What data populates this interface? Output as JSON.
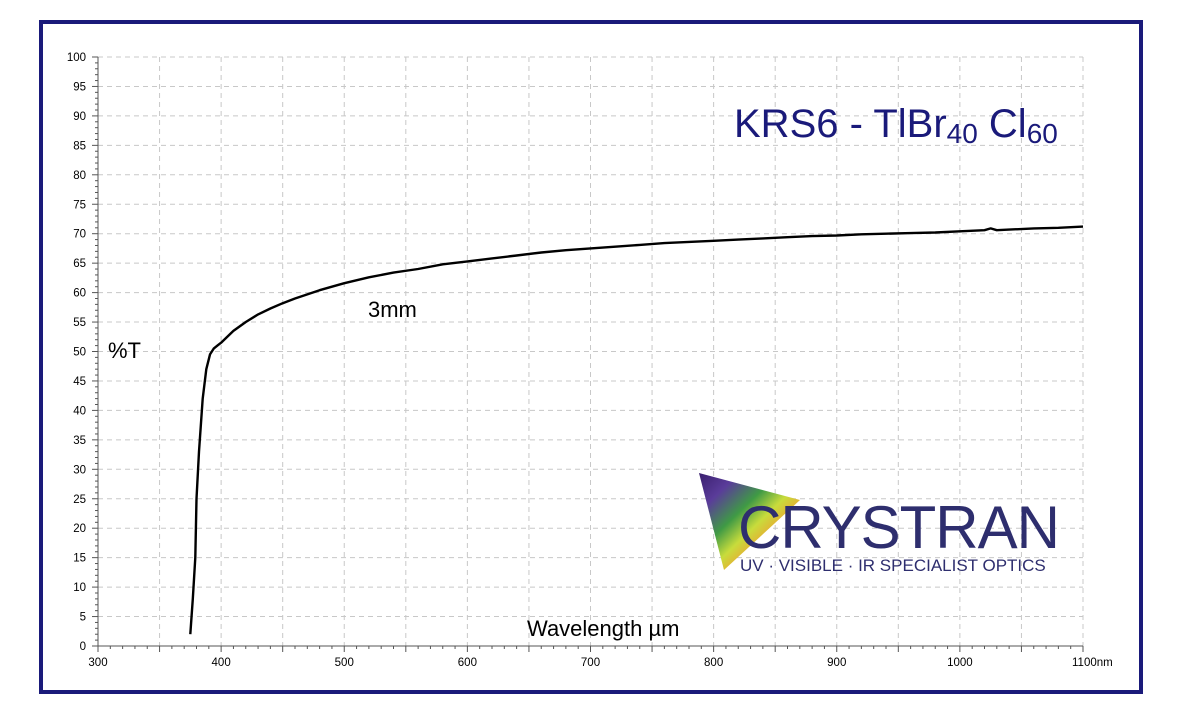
{
  "chart_data": {
    "type": "line",
    "title_main": "KRS6 - TlBr",
    "title_sub1": "40",
    "title_mid": " Cl",
    "title_sub2": "60",
    "xlabel": "Wavelength µm",
    "ylabel": "%T",
    "xlim": [
      300,
      1100
    ],
    "ylim": [
      0,
      100
    ],
    "x_ticks": [
      "300",
      "400",
      "500",
      "600",
      "700",
      "800",
      "900",
      "1000",
      "1100nm"
    ],
    "y_ticks": [
      "0",
      "5",
      "10",
      "15",
      "20",
      "25",
      "30",
      "35",
      "40",
      "45",
      "50",
      "55",
      "60",
      "65",
      "70",
      "75",
      "80",
      "85",
      "90",
      "95",
      "100"
    ],
    "grid": true,
    "annotation": "3mm",
    "series": [
      {
        "name": "3mm",
        "color": "#000000",
        "x": [
          375,
          377,
          379,
          380,
          382,
          385,
          388,
          391,
          394,
          397,
          400,
          405,
          410,
          420,
          430,
          440,
          450,
          460,
          470,
          480,
          490,
          500,
          520,
          540,
          560,
          580,
          600,
          620,
          640,
          660,
          680,
          700,
          720,
          740,
          760,
          780,
          800,
          820,
          840,
          860,
          880,
          900,
          920,
          940,
          960,
          980,
          1000,
          1020,
          1025,
          1030,
          1040,
          1060,
          1080,
          1100
        ],
        "y": [
          2,
          8,
          15,
          25,
          33,
          42,
          47,
          49.5,
          50.5,
          51,
          51.5,
          52.5,
          53.5,
          55,
          56.3,
          57.3,
          58.2,
          59,
          59.7,
          60.4,
          61,
          61.6,
          62.6,
          63.4,
          64,
          64.8,
          65.3,
          65.8,
          66.3,
          66.8,
          67.2,
          67.5,
          67.8,
          68.1,
          68.4,
          68.6,
          68.8,
          69,
          69.2,
          69.4,
          69.6,
          69.7,
          69.9,
          70,
          70.1,
          70.2,
          70.4,
          70.6,
          70.9,
          70.6,
          70.7,
          70.9,
          71,
          71.2
        ]
      }
    ]
  },
  "logo": {
    "wordmark": "CRYSTRAN",
    "tagline": "UV · VISIBLE · IR SPECIALIST OPTICS"
  },
  "colors": {
    "frame": "#1a1a7a",
    "title": "#1a1a7a",
    "logo_text": "#2e2e6e"
  }
}
